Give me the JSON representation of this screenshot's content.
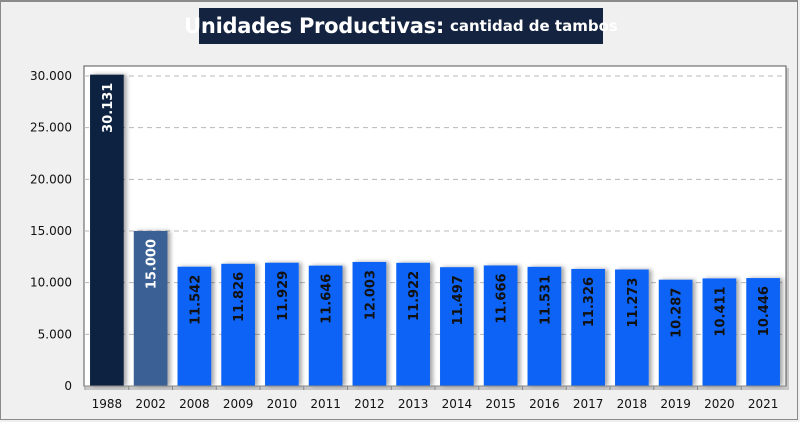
{
  "chart_data": {
    "type": "bar",
    "title": "Unidades Productivas:",
    "subtitle": "cantidad de tambos",
    "xlabel": "",
    "ylabel": "",
    "categories": [
      "1988",
      "2002",
      "2008",
      "2009",
      "2010",
      "2011",
      "2012",
      "2013",
      "2014",
      "2015",
      "2016",
      "2017",
      "2018",
      "2019",
      "2020",
      "2021"
    ],
    "values": [
      30131,
      15000,
      11542,
      11826,
      11929,
      11646,
      12003,
      11922,
      11497,
      11666,
      11531,
      11326,
      11273,
      10287,
      10411,
      10446
    ],
    "value_labels": [
      "30.131",
      "15.000",
      "11.542",
      "11.826",
      "11.929",
      "11.646",
      "12.003",
      "11.922",
      "11.497",
      "11.666",
      "11.531",
      "11.326",
      "11.273",
      "10.287",
      "10.411",
      "10.446"
    ],
    "ylim": [
      0,
      30000
    ],
    "yticks": [
      0,
      5000,
      10000,
      15000,
      20000,
      25000,
      30000
    ],
    "ytick_labels": [
      "0",
      "5.000",
      "10.000",
      "15.000",
      "20.000",
      "25.000",
      "30.000"
    ],
    "grid": true,
    "legend": "none",
    "bar_colors": [
      "#11233f",
      "#3a6195",
      "#0a64f5",
      "#0a64f5",
      "#0a64f5",
      "#0a64f5",
      "#0a64f5",
      "#0a64f5",
      "#0a64f5",
      "#0a64f5",
      "#0a64f5",
      "#0a64f5",
      "#0a64f5",
      "#0a64f5",
      "#0a64f5",
      "#0a64f5"
    ],
    "label_colors": [
      "#ffffff",
      "#ffffff",
      "#111111",
      "#111111",
      "#111111",
      "#111111",
      "#111111",
      "#111111",
      "#111111",
      "#111111",
      "#111111",
      "#111111",
      "#111111",
      "#111111",
      "#111111",
      "#111111"
    ]
  }
}
